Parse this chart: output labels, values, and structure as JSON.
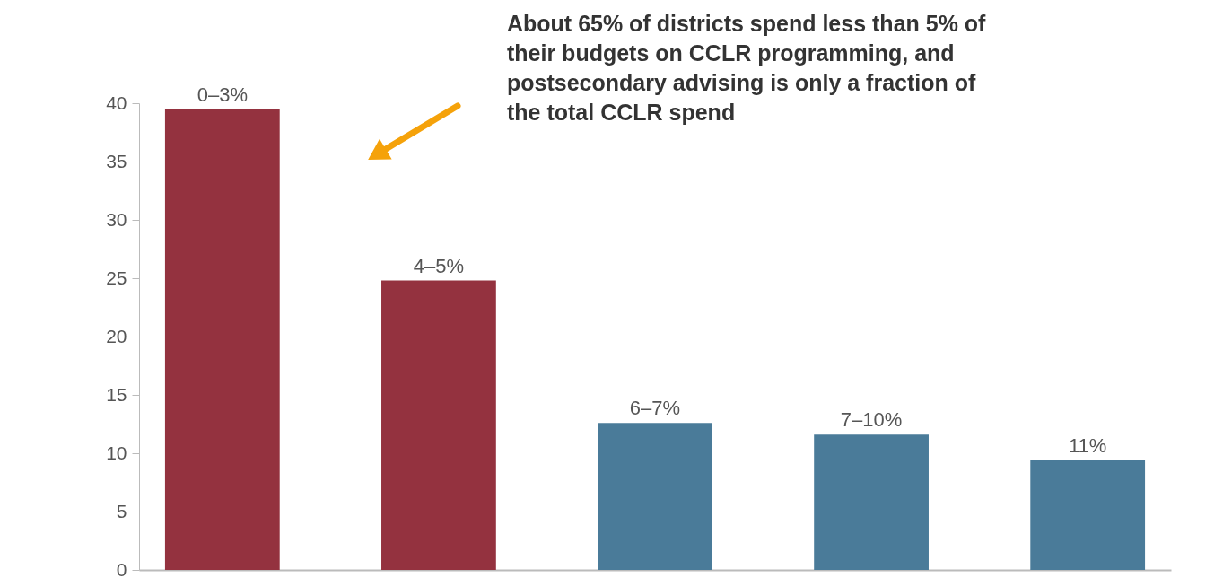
{
  "chart_data": {
    "type": "bar",
    "categories": [
      "0–3%",
      "4–5%",
      "6–7%",
      "7–10%",
      "11%"
    ],
    "values": [
      39.5,
      24.8,
      12.6,
      11.6,
      9.4
    ],
    "colors": [
      "#94323f",
      "#94323f",
      "#4a7b99",
      "#4a7b99",
      "#4a7b99"
    ],
    "ylim": [
      0,
      40
    ],
    "yticks": [
      0,
      5,
      10,
      15,
      20,
      25,
      30,
      35,
      40
    ],
    "tick_labels": "y",
    "grid": false,
    "annotations": [
      "About 65% of districts spend less than 5% of their budgets on CCLR programming, and postsecondary advising is only a fraction of the total CCLR spend"
    ]
  }
}
